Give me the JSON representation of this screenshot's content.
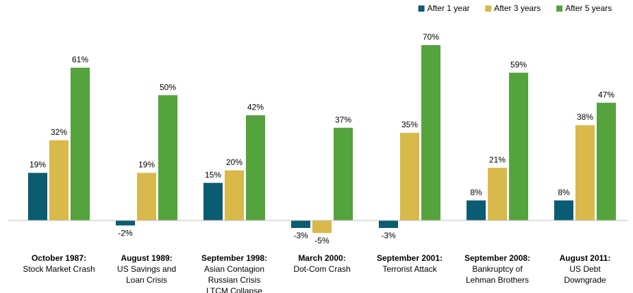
{
  "chart_data": {
    "type": "bar",
    "categories": [
      [
        "October 1987:",
        "Stock Market Crash"
      ],
      [
        "August 1989:",
        "US Savings and",
        "Loan Crisis"
      ],
      [
        "September 1998:",
        "Asian Contagion",
        "Russian Crisis",
        "LTCM Collapse"
      ],
      [
        "March 2000:",
        "Dot-Com Crash"
      ],
      [
        "September 2001:",
        "Terrorist Attack"
      ],
      [
        "September 2008:",
        "Bankruptcy of",
        "Lehman Brothers"
      ],
      [
        "August 2011:",
        "US Debt",
        "Downgrade"
      ]
    ],
    "series": [
      {
        "name": "After 1 year",
        "color": "#0b5c72",
        "values": [
          19,
          -2,
          15,
          -3,
          -3,
          8,
          8
        ],
        "value_labels": [
          "19%",
          "-2%",
          "15%",
          "-3%",
          "-3%",
          "8%",
          "8%"
        ]
      },
      {
        "name": "After 3 years",
        "color": "#d8b94a",
        "values": [
          32,
          19,
          20,
          -5,
          35,
          21,
          38
        ],
        "value_labels": [
          "32%",
          "19%",
          "20%",
          "-5%",
          "35%",
          "21%",
          "38%"
        ]
      },
      {
        "name": "After 5 years",
        "color": "#55a33c",
        "values": [
          61,
          50,
          42,
          37,
          70,
          59,
          47
        ],
        "value_labels": [
          "61%",
          "50%",
          "42%",
          "37%",
          "70%",
          "59%",
          "47%"
        ]
      }
    ],
    "ylim": [
      -10,
      76
    ],
    "legend": "top-right"
  }
}
